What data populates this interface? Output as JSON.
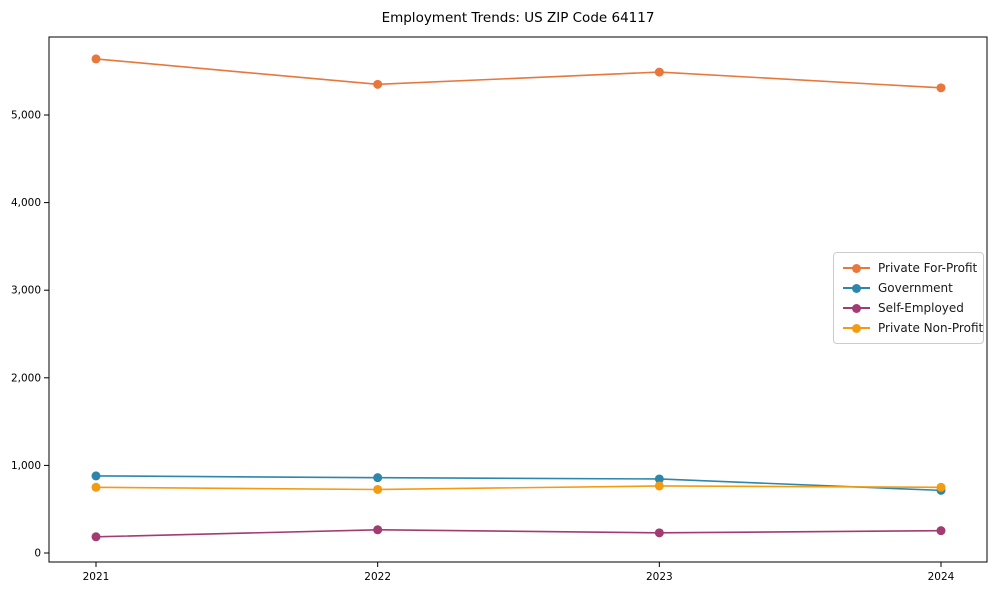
{
  "chart_data": {
    "type": "line",
    "title": "Employment Trends: US ZIP Code 64117",
    "xlabel": "",
    "ylabel": "",
    "x": [
      2021,
      2022,
      2023,
      2024
    ],
    "x_tick_labels": [
      "2021",
      "2022",
      "2023",
      "2024"
    ],
    "y_ticks": [
      0,
      1000,
      2000,
      3000,
      4000,
      5000
    ],
    "y_tick_labels": [
      "0",
      "1,000",
      "2,000",
      "3,000",
      "4,000",
      "5,000"
    ],
    "ylim": [
      -100,
      5890
    ],
    "grid": false,
    "legend_position": "center right",
    "frame_color": "#000000",
    "legend_border_color": "#cccccc",
    "series": [
      {
        "name": "Private For-Profit",
        "color": "#E8773C",
        "values": [
          5640,
          5350,
          5490,
          5310
        ]
      },
      {
        "name": "Government",
        "color": "#2E86AB",
        "values": [
          880,
          860,
          845,
          715
        ]
      },
      {
        "name": "Self-Employed",
        "color": "#A23B72",
        "values": [
          185,
          265,
          230,
          255
        ]
      },
      {
        "name": "Private Non-Profit",
        "color": "#F39C12",
        "values": [
          750,
          725,
          765,
          750
        ]
      }
    ]
  }
}
